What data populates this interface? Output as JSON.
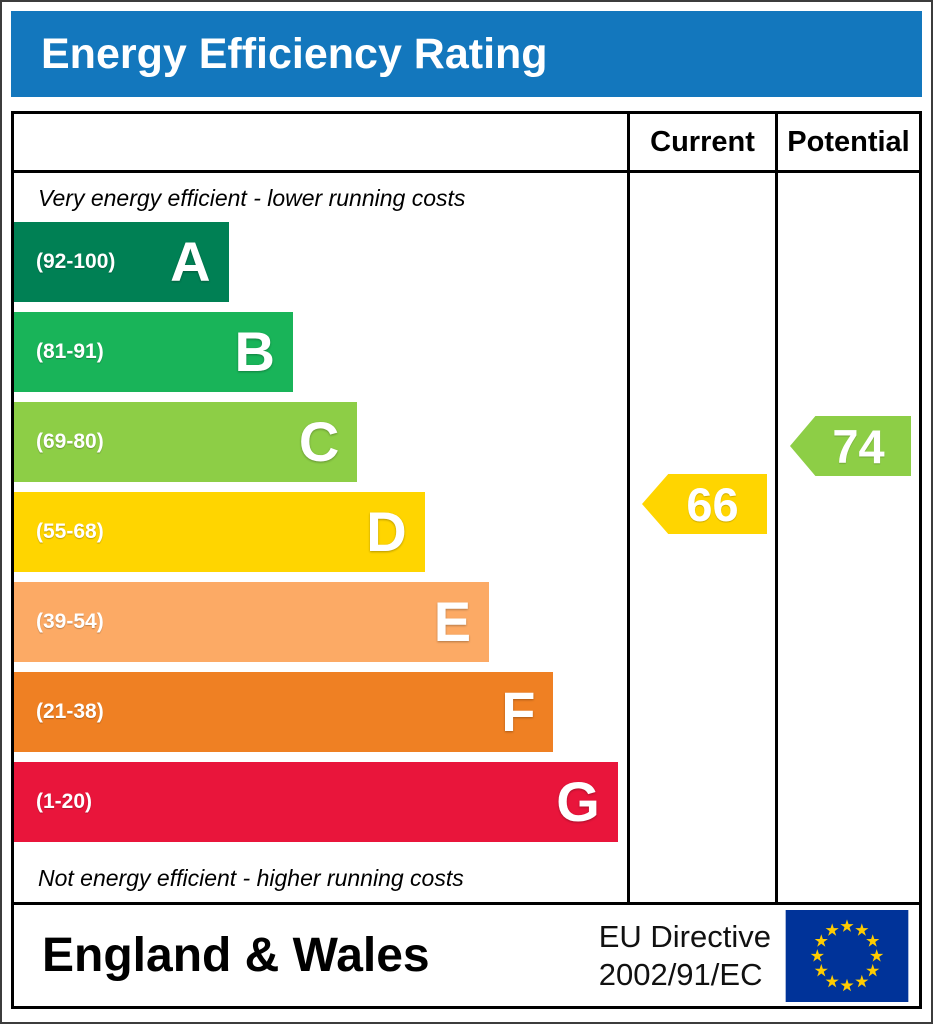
{
  "title": "Energy Efficiency Rating",
  "columns": {
    "current": "Current",
    "potential": "Potential"
  },
  "notes": {
    "top": "Very energy efficient - lower running costs",
    "bottom": "Not energy efficient - higher running costs"
  },
  "bands": [
    {
      "letter": "A",
      "range": "(92-100)",
      "min": 92,
      "max": 100,
      "color": "#008054",
      "width_pct": 35
    },
    {
      "letter": "B",
      "range": "(81-91)",
      "min": 81,
      "max": 91,
      "color": "#19b459",
      "width_pct": 45.5
    },
    {
      "letter": "C",
      "range": "(69-80)",
      "min": 69,
      "max": 80,
      "color": "#8dce46",
      "width_pct": 56
    },
    {
      "letter": "D",
      "range": "(55-68)",
      "min": 55,
      "max": 68,
      "color": "#ffd500",
      "width_pct": 67
    },
    {
      "letter": "E",
      "range": "(39-54)",
      "min": 39,
      "max": 54,
      "color": "#fcaa65",
      "width_pct": 77.5
    },
    {
      "letter": "F",
      "range": "(21-38)",
      "min": 21,
      "max": 38,
      "color": "#ef8023",
      "width_pct": 88
    },
    {
      "letter": "G",
      "range": "(1-20)",
      "min": 1,
      "max": 20,
      "color": "#e9153b",
      "width_pct": 98.5
    }
  ],
  "ratings": {
    "current": {
      "value": "66",
      "band": "D",
      "color": "#ffd500"
    },
    "potential": {
      "value": "74",
      "band": "C",
      "color": "#8dce46"
    }
  },
  "footer": {
    "region": "England & Wales",
    "directive_line1": "EU Directive",
    "directive_line2": "2002/91/EC",
    "flag_icon": "eu-flag-icon"
  },
  "colors": {
    "title_bar_bg": "#1377bd",
    "title_text": "#ffffff",
    "border": "#000000",
    "eu_flag_bg": "#003399",
    "eu_flag_stars": "#ffcc00"
  },
  "chart_data": {
    "type": "bar",
    "title": "Energy Efficiency Rating",
    "categories": [
      "A (92-100)",
      "B (81-91)",
      "C (69-80)",
      "D (55-68)",
      "E (39-54)",
      "F (21-38)",
      "G (1-20)"
    ],
    "values": [
      35,
      45.5,
      56,
      67,
      77.5,
      88,
      98.5
    ],
    "value_unit": "relative bar width %",
    "band_colors": [
      "#008054",
      "#19b459",
      "#8dce46",
      "#ffd500",
      "#fcaa65",
      "#ef8023",
      "#e9153b"
    ],
    "markers": [
      {
        "label": "Current",
        "value": 66,
        "band": "D",
        "color": "#ffd500"
      },
      {
        "label": "Potential",
        "value": 74,
        "band": "C",
        "color": "#8dce46"
      }
    ],
    "scale_range": [
      1,
      100
    ],
    "xlabel": "",
    "ylabel": "",
    "grid": false,
    "legend_position": "none",
    "annotations": [
      "Very energy efficient - lower running costs",
      "Not energy efficient - higher running costs",
      "England & Wales",
      "EU Directive 2002/91/EC"
    ]
  }
}
